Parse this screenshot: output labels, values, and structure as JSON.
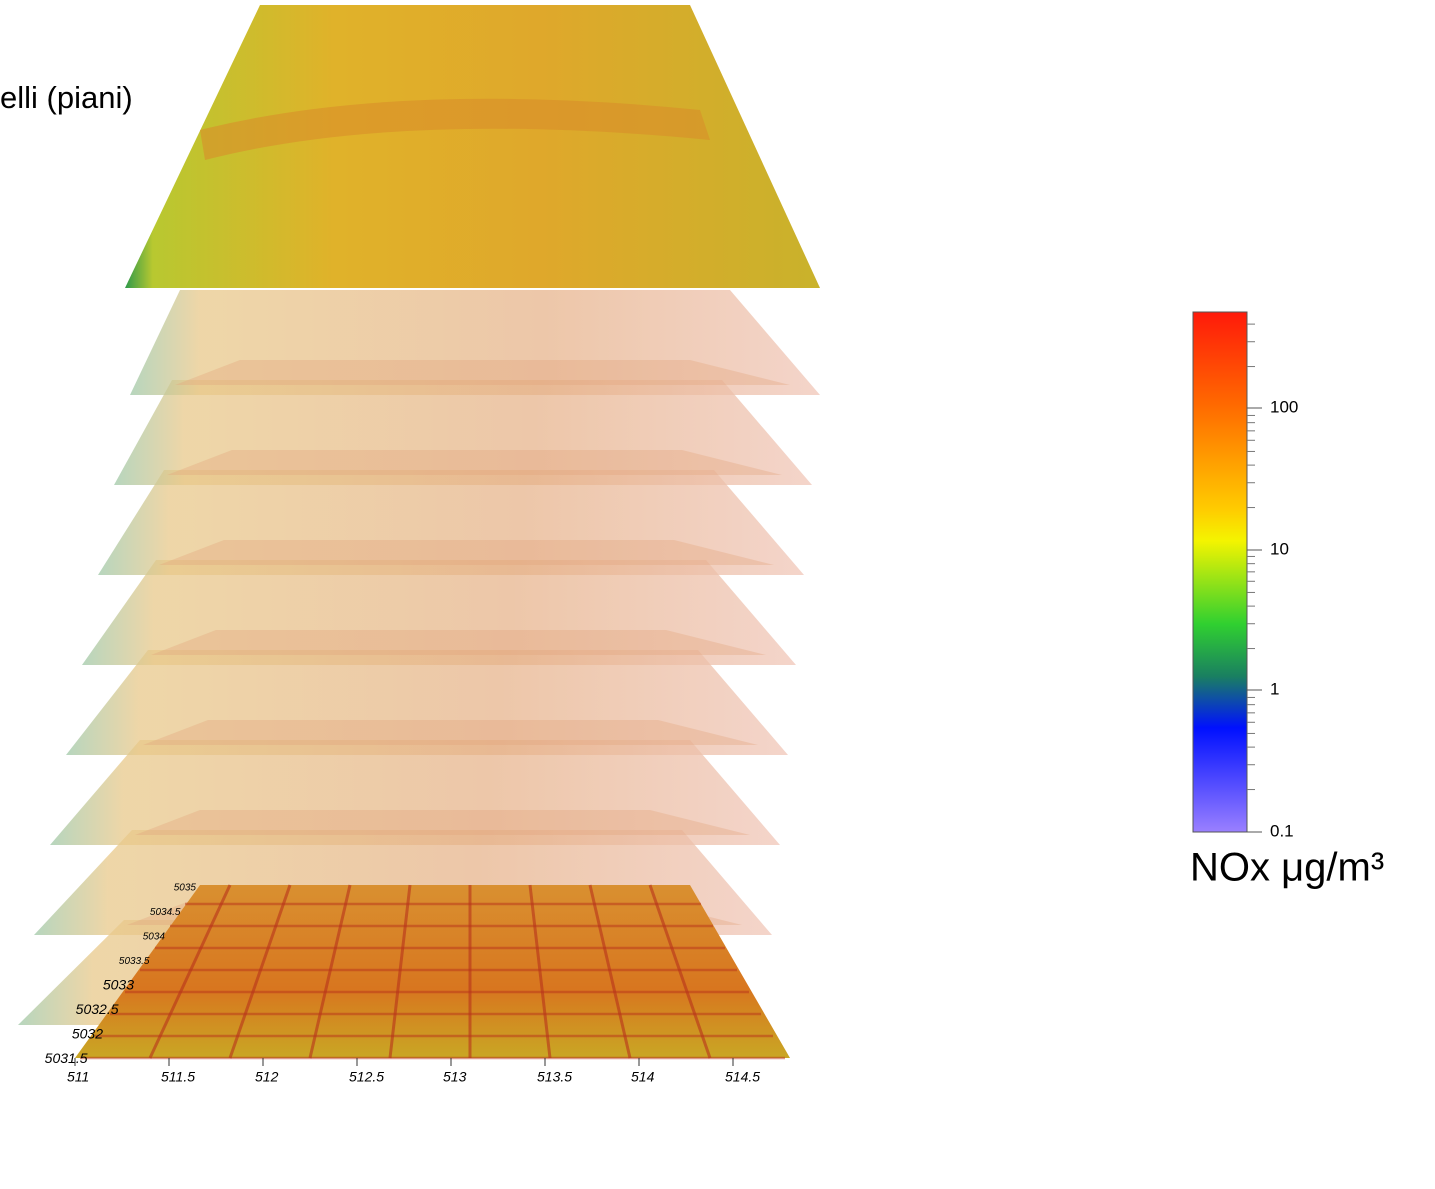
{
  "heading": "elli (piani)",
  "colorbar": {
    "ticks": [
      "100",
      "10",
      "1",
      "0.1"
    ],
    "label": "NOx μg/m³"
  },
  "base_plane": {
    "x_ticks": [
      "511",
      "511.5",
      "512",
      "512.5",
      "513",
      "513.5",
      "514",
      "514.5"
    ],
    "y_ticks": [
      "5035",
      "5034.5",
      "5034",
      "5033.5",
      "5033",
      "5032.5",
      "5032",
      "5031.5"
    ]
  }
}
